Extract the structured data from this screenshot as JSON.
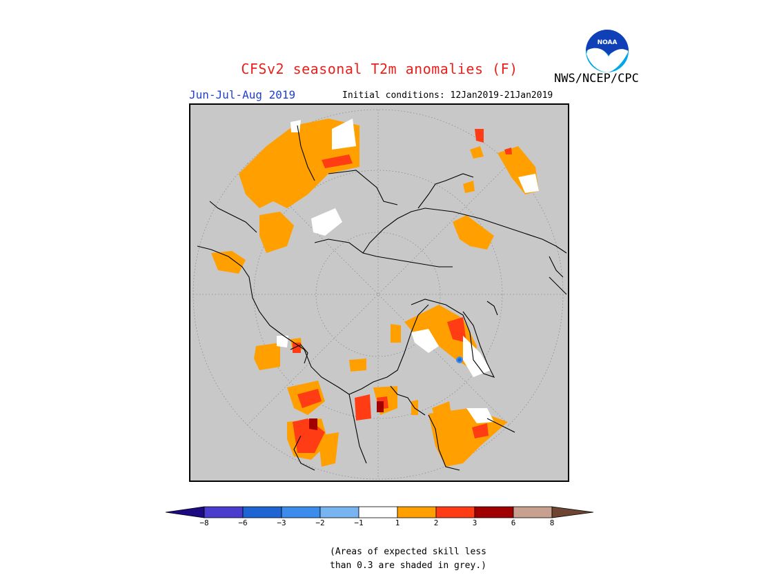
{
  "header": {
    "title": "CFSv2 seasonal T2m anomalies (F)",
    "period": "Jun-Jul-Aug 2019",
    "initial_conditions": "Initial conditions: 12Jan2019-21Jan2019",
    "agency": "NWS/NCEP/CPC",
    "logo_text": "NOAA"
  },
  "colors": {
    "title": "#e8201c",
    "period": "#1f3fd1",
    "land_grey": "#c8c8c8",
    "anomaly_1_2": "#ffa000",
    "anomaly_2_3": "#ff3c14",
    "anomaly_3_6": "#a00000",
    "near_zero": "#ffffff"
  },
  "colorbar": {
    "tick_labels": [
      "−8",
      "−6",
      "−3",
      "−2",
      "−1",
      "1",
      "2",
      "3",
      "6",
      "8"
    ],
    "colors": [
      "#1c0a82",
      "#4a3ccc",
      "#1e64d2",
      "#3c8ceb",
      "#78b4f0",
      "#ffffff",
      "#ffa000",
      "#ff3c14",
      "#a00000",
      "#c8a090",
      "#6e4432"
    ]
  },
  "footnote": "(Areas of expected skill less\nthan 0.3 are shaded in grey.)"
}
